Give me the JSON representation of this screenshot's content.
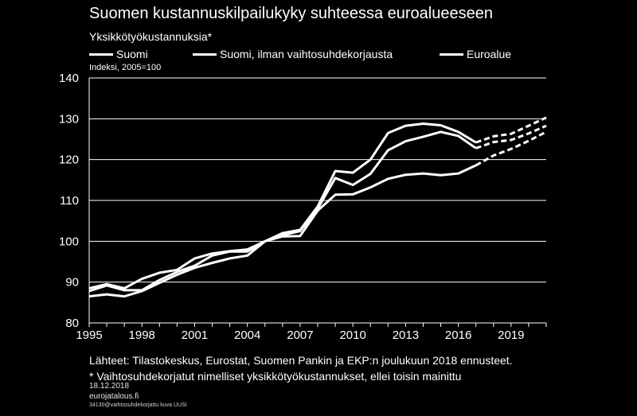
{
  "title": "Suomen kustannuskilpailukyky suhteessa euroalueeseen",
  "subtitle": "Yksikkötyökustannuksia*",
  "unit_label": "Indeksi, 2005=100",
  "footer": {
    "sources": "Lähteet: Tilastokeskus, Eurostat, Suomen Pankin ja EKP:n joulukuun 2018 ennusteet.",
    "note": "* Vaihtosuhdekorjatut nimelliset yksikkötyökustannukset, ellei toisin mainittu",
    "date": "18.12.2018",
    "site": "eurojatalous.fi",
    "code": "34130@vaihtosuhdekorjattu kuva UUSI"
  },
  "colors": {
    "background": "#000000",
    "lines": "#ffffff",
    "grid": "#ffffff"
  },
  "chart_data": {
    "type": "line",
    "title": "Suomen kustannuskilpailukyky suhteessa euroalueeseen",
    "ylim": [
      80,
      140
    ],
    "xlim": [
      1995,
      2021
    ],
    "y_ticks": [
      80,
      90,
      100,
      110,
      120,
      130,
      140
    ],
    "x_ticks": [
      1995,
      1998,
      2001,
      2004,
      2007,
      2010,
      2013,
      2016,
      2019
    ],
    "grid": "horizontal",
    "legend": "top",
    "forecast_from": 2017,
    "series": [
      {
        "name": "Suomi",
        "x": [
          1995,
          1996,
          1997,
          1998,
          1999,
          2000,
          2001,
          2002,
          2003,
          2004,
          2005,
          2006,
          2007,
          2008,
          2009,
          2010,
          2011,
          2012,
          2013,
          2014,
          2015,
          2016,
          2017,
          2018,
          2019,
          2020,
          2021
        ],
        "values": [
          88.5,
          89.5,
          88.5,
          90.8,
          92.3,
          93.0,
          95.8,
          97.0,
          97.6,
          98.0,
          100.0,
          102.0,
          102.8,
          108.5,
          117.2,
          116.8,
          120.0,
          126.5,
          128.3,
          128.8,
          128.4,
          126.8,
          124.2,
          125.7,
          126.3,
          128.3,
          130.3
        ]
      },
      {
        "name": "Suomi, ilman vaihtosuhdekorjausta",
        "x": [
          1995,
          1996,
          1997,
          1998,
          1999,
          2000,
          2001,
          2002,
          2003,
          2004,
          2005,
          2006,
          2007,
          2008,
          2009,
          2010,
          2011,
          2012,
          2013,
          2014,
          2015,
          2016,
          2017,
          2018,
          2019,
          2020,
          2021
        ],
        "values": [
          87.8,
          89.2,
          88.0,
          88.0,
          90.5,
          92.5,
          94.0,
          96.5,
          97.5,
          97.5,
          100.0,
          101.5,
          102.5,
          108.0,
          115.5,
          113.8,
          116.5,
          122.3,
          124.5,
          125.6,
          126.8,
          125.8,
          122.8,
          124.3,
          124.8,
          126.4,
          128.3
        ]
      },
      {
        "name": "Euroalue",
        "x": [
          1995,
          1996,
          1997,
          1998,
          1999,
          2000,
          2001,
          2002,
          2003,
          2004,
          2005,
          2006,
          2007,
          2008,
          2009,
          2010,
          2011,
          2012,
          2013,
          2014,
          2015,
          2016,
          2017,
          2018,
          2019,
          2020,
          2021
        ],
        "values": [
          86.5,
          87.0,
          86.5,
          87.8,
          89.8,
          91.8,
          93.5,
          94.7,
          95.8,
          96.5,
          100.0,
          101.2,
          101.3,
          107.5,
          111.4,
          111.5,
          113.2,
          115.3,
          116.3,
          116.6,
          116.2,
          116.6,
          118.6,
          121.0,
          122.6,
          124.6,
          126.8
        ]
      }
    ]
  }
}
